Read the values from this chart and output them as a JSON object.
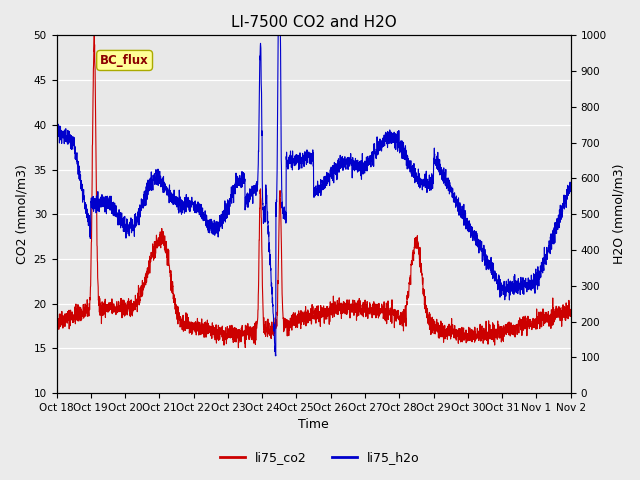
{
  "title": "LI-7500 CO2 and H2O",
  "xlabel": "Time",
  "ylabel_left": "CO2 (mmol/m3)",
  "ylabel_right": "H2O (mmol/m3)",
  "ylim_left": [
    10,
    50
  ],
  "ylim_right": [
    0,
    1000
  ],
  "yticks_left": [
    10,
    15,
    20,
    25,
    30,
    35,
    40,
    45,
    50
  ],
  "yticks_right": [
    0,
    100,
    200,
    300,
    400,
    500,
    600,
    700,
    800,
    900,
    1000
  ],
  "xtick_labels": [
    "Oct 18",
    "Oct 19",
    "Oct 20",
    "Oct 21",
    "Oct 22",
    "Oct 23",
    "Oct 24",
    "Oct 25",
    "Oct 26",
    "Oct 27",
    "Oct 28",
    "Oct 29",
    "Oct 30",
    "Oct 31",
    "Nov 1",
    "Nov 2"
  ],
  "background_color": "#ebebeb",
  "plot_bg_color": "#e8e8e8",
  "legend_label_co2": "li75_co2",
  "legend_label_h2o": "li75_h2o",
  "co2_color": "#cc0000",
  "h2o_color": "#0000cc",
  "annotation_text": "BC_flux",
  "annotation_color": "#8b0000",
  "annotation_bg": "#ffff99",
  "title_fontsize": 11,
  "axis_fontsize": 9,
  "tick_fontsize": 7.5,
  "legend_fontsize": 9,
  "n_points": 3000
}
